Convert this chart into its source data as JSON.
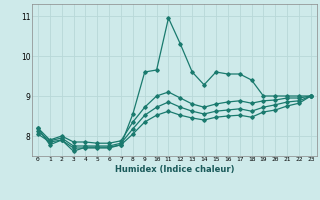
{
  "xlabel": "Humidex (Indice chaleur)",
  "background_color": "#ceeaea",
  "grid_color": "#b8d8d8",
  "line_color": "#1a7a6e",
  "xlim": [
    -0.5,
    23.5
  ],
  "ylim": [
    7.5,
    11.3
  ],
  "yticks": [
    8,
    9,
    10,
    11
  ],
  "xticks": [
    0,
    1,
    2,
    3,
    4,
    5,
    6,
    7,
    8,
    9,
    10,
    11,
    12,
    13,
    14,
    15,
    16,
    17,
    18,
    19,
    20,
    21,
    22,
    23
  ],
  "series": {
    "line1_x": [
      0,
      1,
      2,
      3,
      4,
      5,
      6,
      7,
      8,
      9,
      10,
      11,
      12,
      13,
      14,
      15,
      16,
      17,
      18,
      19,
      20,
      21,
      22,
      23
    ],
    "line1_y": [
      8.2,
      7.78,
      7.9,
      7.62,
      7.72,
      7.72,
      7.72,
      7.78,
      8.55,
      9.6,
      9.65,
      10.95,
      10.3,
      9.6,
      9.28,
      9.6,
      9.55,
      9.55,
      9.4,
      9.0,
      9.0,
      9.0,
      9.0,
      9.0
    ],
    "line2_x": [
      0,
      1,
      2,
      3,
      4,
      5,
      6,
      7,
      8,
      9,
      10,
      11,
      12,
      13,
      14,
      15,
      16,
      17,
      18,
      19,
      20,
      21,
      22,
      23
    ],
    "line2_y": [
      8.2,
      7.9,
      8.0,
      7.85,
      7.85,
      7.82,
      7.82,
      7.88,
      8.35,
      8.72,
      9.0,
      9.1,
      8.95,
      8.8,
      8.72,
      8.8,
      8.85,
      8.88,
      8.82,
      8.88,
      8.9,
      8.95,
      8.95,
      9.0
    ],
    "line3_x": [
      0,
      1,
      2,
      3,
      4,
      5,
      6,
      7,
      8,
      9,
      10,
      11,
      12,
      13,
      14,
      15,
      16,
      17,
      18,
      19,
      20,
      21,
      22,
      23
    ],
    "line3_y": [
      8.12,
      7.88,
      7.95,
      7.75,
      7.75,
      7.75,
      7.75,
      7.82,
      8.18,
      8.52,
      8.72,
      8.85,
      8.72,
      8.62,
      8.55,
      8.62,
      8.65,
      8.68,
      8.62,
      8.72,
      8.78,
      8.85,
      8.88,
      9.0
    ],
    "line4_x": [
      0,
      1,
      2,
      3,
      4,
      5,
      6,
      7,
      8,
      9,
      10,
      11,
      12,
      13,
      14,
      15,
      16,
      17,
      18,
      19,
      20,
      21,
      22,
      23
    ],
    "line4_y": [
      8.05,
      7.85,
      7.9,
      7.7,
      7.7,
      7.7,
      7.7,
      7.78,
      8.05,
      8.35,
      8.52,
      8.62,
      8.52,
      8.45,
      8.4,
      8.47,
      8.5,
      8.52,
      8.47,
      8.6,
      8.65,
      8.75,
      8.82,
      9.0
    ]
  }
}
